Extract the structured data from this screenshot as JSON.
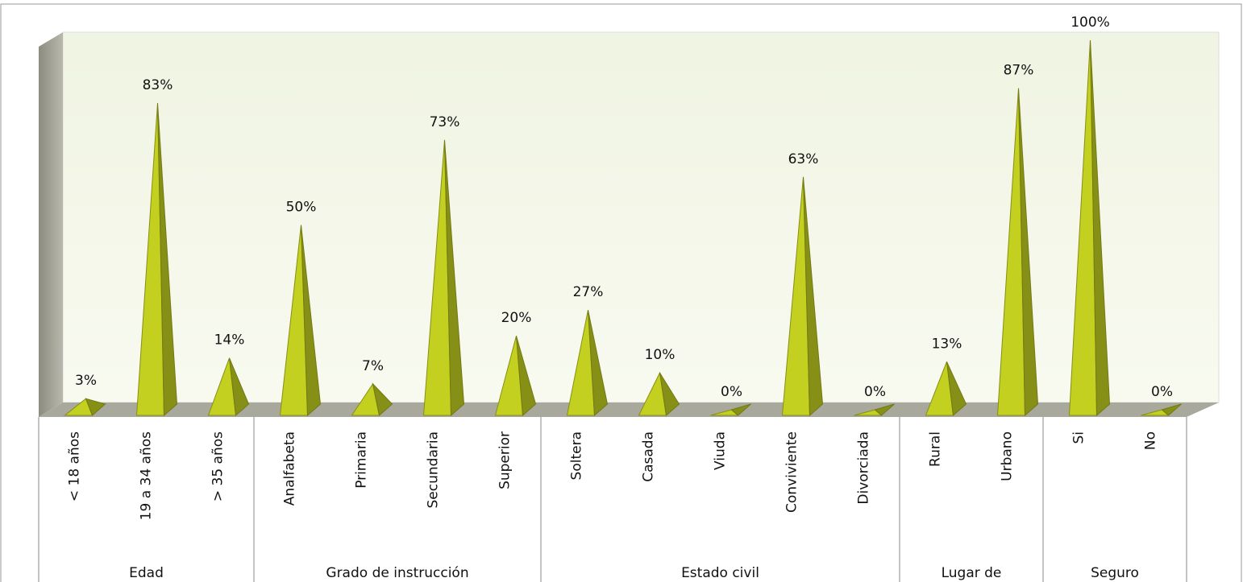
{
  "chart_data": {
    "type": "pyramid",
    "color": "#bfcc1f",
    "groups": [
      {
        "name": "Edad",
        "categories": [
          "< 18  años",
          "19 a 34 años",
          "> 35 años"
        ],
        "values": [
          3,
          83,
          14
        ],
        "value_labels": [
          "3%",
          "83%",
          "14%"
        ]
      },
      {
        "name": "Grado de instrucción",
        "categories": [
          "Analfabeta",
          "Primaria",
          "Secundaria",
          "Superior"
        ],
        "values": [
          50,
          7,
          73,
          20
        ],
        "value_labels": [
          "50%",
          "7%",
          "73%",
          "20%"
        ]
      },
      {
        "name": "Estado civil",
        "categories": [
          "Soltera",
          "Casada",
          "Viuda",
          "Conviviente",
          "Divorciada"
        ],
        "values": [
          27,
          10,
          0,
          63,
          0
        ],
        "value_labels": [
          "27%",
          "10%",
          "0%",
          "63%",
          "0%"
        ]
      },
      {
        "name": "Lugar de",
        "categories": [
          "Rural",
          "Urbano"
        ],
        "values": [
          13,
          87
        ],
        "value_labels": [
          "13%",
          "87%"
        ]
      },
      {
        "name": "Seguro",
        "categories": [
          "Si",
          "No"
        ],
        "values": [
          100,
          0
        ],
        "value_labels": [
          "100%",
          "0%"
        ]
      }
    ]
  }
}
